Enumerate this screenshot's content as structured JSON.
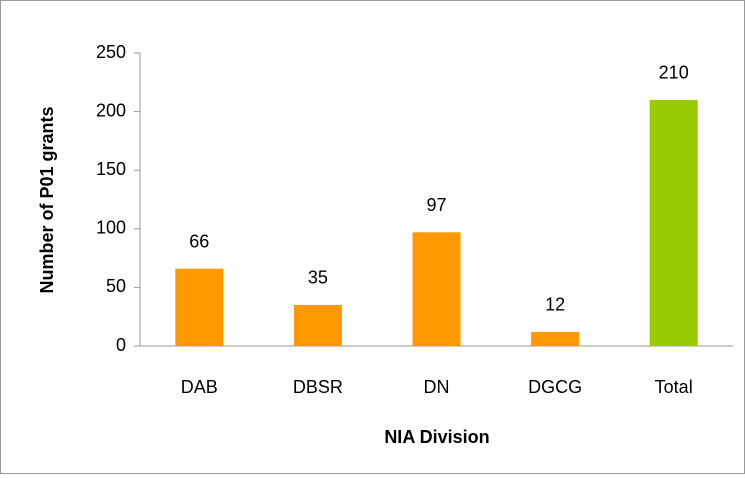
{
  "chart_data": {
    "type": "bar",
    "categories": [
      "DAB",
      "DBSR",
      "DN",
      "DGCG",
      "Total"
    ],
    "values": [
      66,
      35,
      97,
      12,
      210
    ],
    "colors": [
      "#ff9900",
      "#ff9900",
      "#ff9900",
      "#ff9900",
      "#99cc00"
    ],
    "xlabel": "NIA Division",
    "ylabel": "Number of P01 grants",
    "ylim": [
      0,
      250
    ],
    "yticks": [
      0,
      50,
      100,
      150,
      200,
      250
    ],
    "grid": false
  }
}
